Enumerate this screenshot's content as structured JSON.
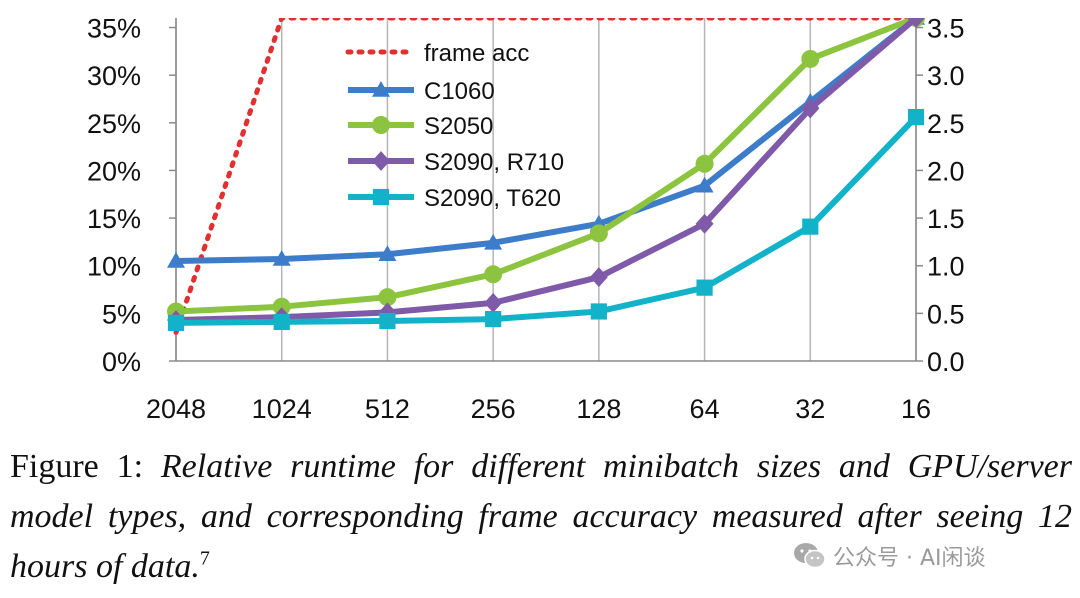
{
  "chart_data": {
    "type": "line",
    "categories": [
      "2048",
      "1024",
      "512",
      "256",
      "128",
      "64",
      "32",
      "16"
    ],
    "y_left": {
      "ticks": [
        "0%",
        "5%",
        "10%",
        "15%",
        "20%",
        "25%",
        "30%",
        "35%"
      ],
      "range": [
        0,
        0.36
      ]
    },
    "y_right": {
      "ticks": [
        "0.0",
        "0.5",
        "1.0",
        "1.5",
        "2.0",
        "2.5",
        "3.0",
        "3.5"
      ],
      "range": [
        0,
        3.6
      ]
    },
    "grid": "vertical",
    "legend_position": "top-center",
    "series": [
      {
        "name": "frame acc",
        "axis": "left",
        "style": "dotted",
        "color": "#e03030",
        "values": [
          0.03,
          0.36,
          0.36,
          0.36,
          0.36,
          0.36,
          0.36,
          0.36
        ]
      },
      {
        "name": "C1060",
        "axis": "left",
        "marker": "triangle",
        "color": "#3d7cc9",
        "values": [
          0.105,
          0.107,
          0.112,
          0.124,
          0.144,
          0.184,
          0.272,
          0.36
        ]
      },
      {
        "name": "S2050",
        "axis": "left",
        "marker": "circle",
        "color": "#8cc43f",
        "values": [
          0.052,
          0.057,
          0.067,
          0.091,
          0.134,
          0.207,
          0.317,
          0.36
        ]
      },
      {
        "name": "S2090, R710",
        "axis": "left",
        "marker": "diamond",
        "color": "#7f5aa8",
        "values": [
          0.043,
          0.046,
          0.051,
          0.061,
          0.088,
          0.144,
          0.265,
          0.36
        ]
      },
      {
        "name": "S2090, T620",
        "axis": "left",
        "marker": "square",
        "color": "#12b3c9",
        "values": [
          0.04,
          0.041,
          0.042,
          0.044,
          0.052,
          0.077,
          0.141,
          0.256
        ]
      }
    ]
  },
  "caption": {
    "label": "Figure 1:",
    "text": "Relative runtime for different minibatch sizes and GPU/server model types, and corresponding frame accuracy measured after seeing 12 hours of data.",
    "footnote": "7"
  },
  "watermark": {
    "text": "公众号 · AI闲谈",
    "icon": "wechat-icon"
  }
}
